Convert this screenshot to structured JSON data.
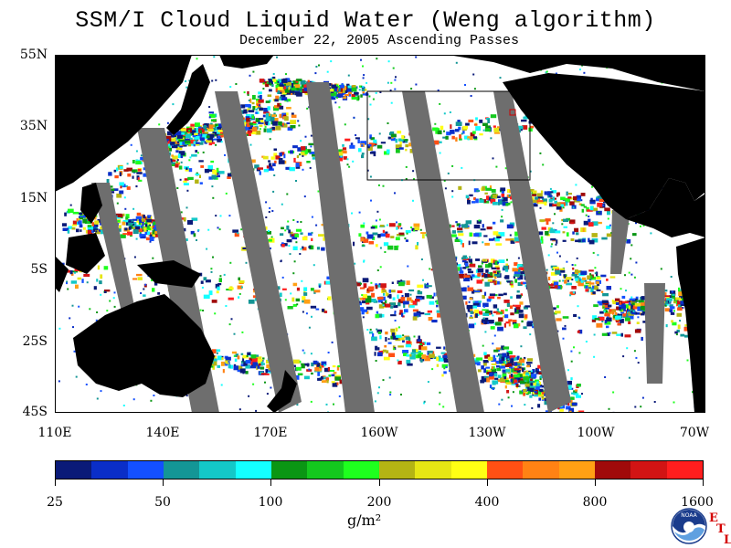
{
  "title": "SSM/I Cloud Liquid Water (Weng algorithm)",
  "subtitle": "December 22, 2005  Ascending Passes",
  "latitude_labels": [
    "55N",
    "35N",
    "15N",
    "5S",
    "25S",
    "45S"
  ],
  "longitude_labels": [
    "110E",
    "140E",
    "170E",
    "160W",
    "130W",
    "100W",
    "70W"
  ],
  "colorbar": {
    "labels": [
      "25",
      "50",
      "100",
      "200",
      "400",
      "800",
      "1600"
    ],
    "units": "g/m²",
    "colors": [
      "#0a1a78",
      "#0a2ec8",
      "#1450ff",
      "#149696",
      "#14c8c8",
      "#14ffff",
      "#0a9614",
      "#14c81e",
      "#1eff1e",
      "#b4b414",
      "#e6e614",
      "#ffff14",
      "#ff5014",
      "#ff8214",
      "#ffa014",
      "#a00a0a",
      "#d21414",
      "#ff1e1e"
    ]
  },
  "logo": {
    "text": "NOAA",
    "etl_letters": [
      "E",
      "T",
      "L"
    ]
  },
  "map_colors": {
    "land": "#000000",
    "no_data_swath": "#6e6e6e",
    "clear": "#ffffff"
  }
}
